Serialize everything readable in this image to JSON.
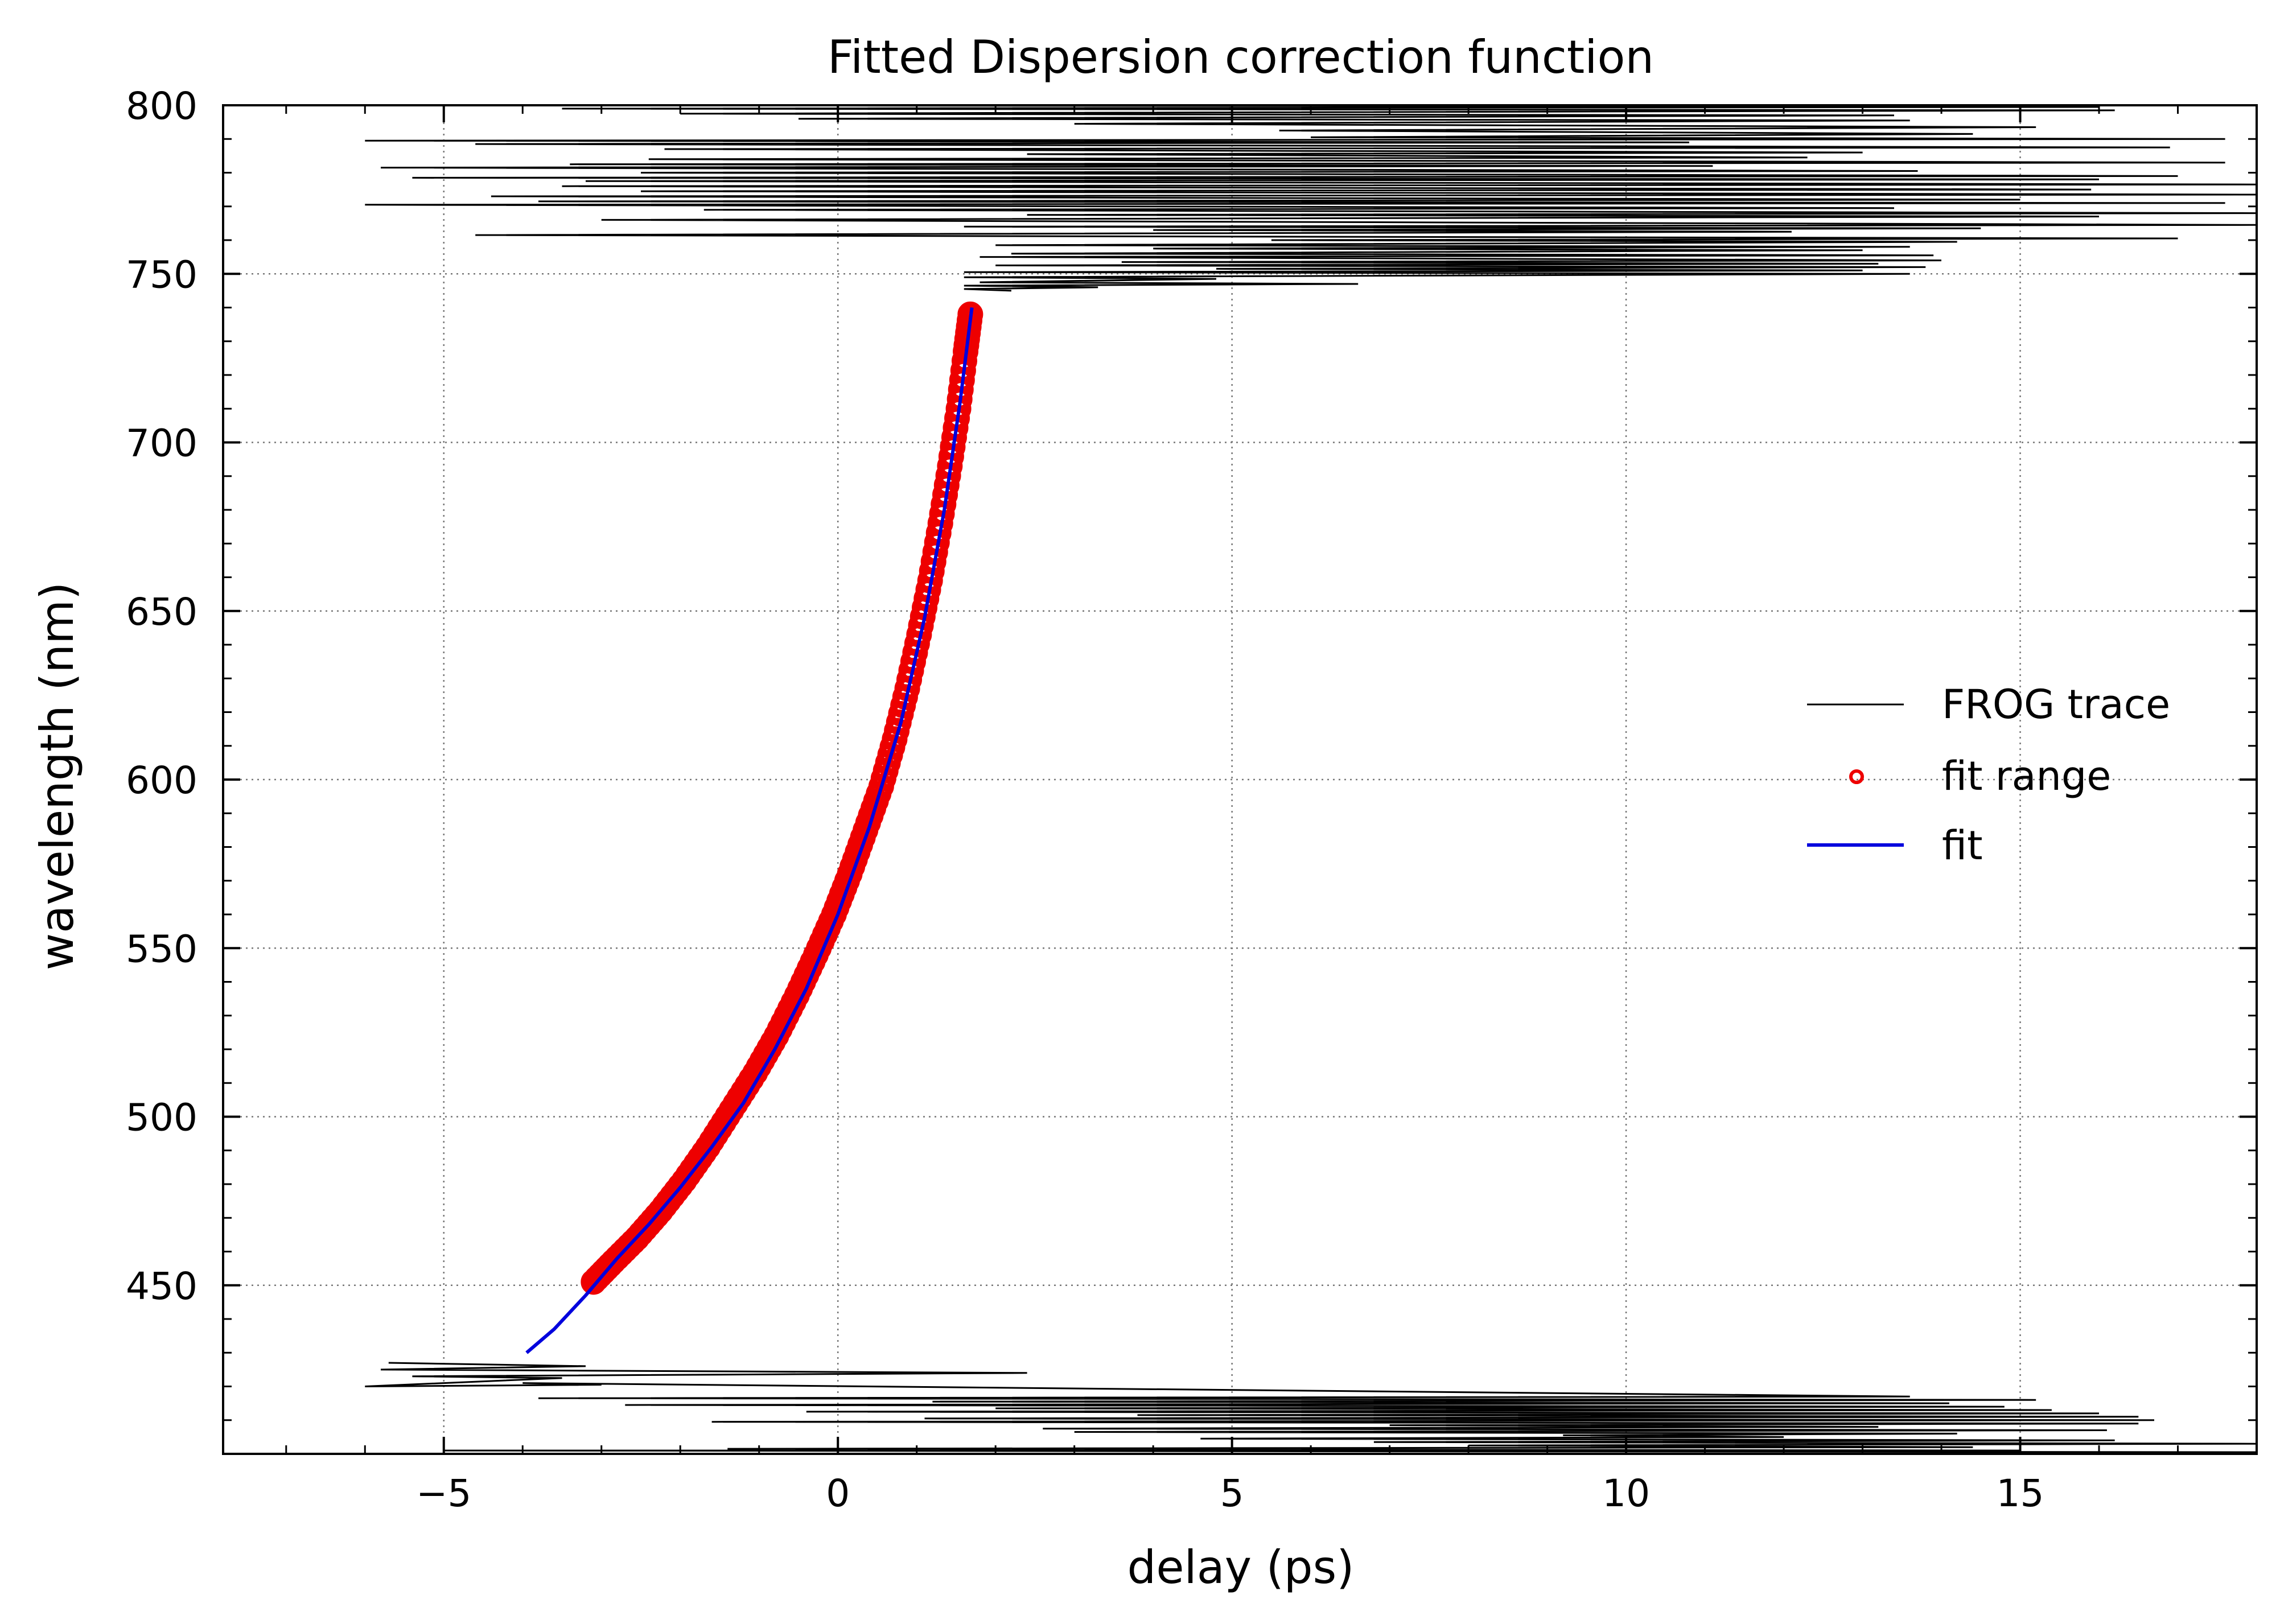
{
  "chart_data": {
    "type": "line",
    "title": "Fitted Dispersion correction function",
    "xlabel": "delay (ps)",
    "ylabel": "wavelength (nm)",
    "xlim": [
      -7.8,
      18.0
    ],
    "ylim": [
      400,
      800
    ],
    "xticks": [
      -5,
      0,
      5,
      10,
      15
    ],
    "xtick_labels": [
      "−5",
      "0",
      "5",
      "10",
      "15"
    ],
    "yticks": [
      450,
      500,
      550,
      600,
      650,
      700,
      750,
      800
    ],
    "ytick_labels": [
      "450",
      "500",
      "550",
      "600",
      "650",
      "700",
      "750",
      "800"
    ],
    "grid": true,
    "legend_position": "center-right",
    "series": [
      {
        "name": "FROG trace",
        "style": "line",
        "color": "#000000",
        "points": [
          [
            -5.7,
            427
          ],
          [
            -3.2,
            426
          ],
          [
            -5.8,
            425
          ],
          [
            2.4,
            424
          ],
          [
            -5.4,
            423
          ],
          [
            -3.5,
            422.5
          ],
          [
            -6.0,
            420
          ],
          [
            -3.0,
            420.5
          ],
          [
            -4.0,
            421
          ],
          [
            13.6,
            417
          ],
          [
            -3.8,
            416.5
          ],
          [
            15.2,
            416
          ],
          [
            1.2,
            415.5
          ],
          [
            14.1,
            415
          ],
          [
            -2.7,
            414.5
          ],
          [
            14.8,
            414
          ],
          [
            2.0,
            413.5
          ],
          [
            15.4,
            413
          ],
          [
            -0.4,
            412.5
          ],
          [
            16.0,
            412
          ],
          [
            3.8,
            411.5
          ],
          [
            16.5,
            411
          ],
          [
            1.1,
            410.5
          ],
          [
            16.7,
            410
          ],
          [
            -1.6,
            409.5
          ],
          [
            16.5,
            409
          ],
          [
            7.0,
            408.5
          ],
          [
            13.2,
            408
          ],
          [
            2.6,
            407.5
          ],
          [
            16.1,
            407
          ],
          [
            3.0,
            406.5
          ],
          [
            14.2,
            406
          ],
          [
            9.2,
            405.5
          ],
          [
            12.0,
            405
          ],
          [
            4.6,
            404.5
          ],
          [
            16.2,
            404
          ],
          [
            6.8,
            403.5
          ],
          [
            18.0,
            403
          ],
          [
            8.0,
            402.5
          ],
          [
            14.4,
            402
          ],
          [
            -1.4,
            401.5
          ],
          [
            15.0,
            401
          ],
          [
            -5.0,
            401
          ],
          [
            18.0,
            400.5
          ]
        ],
        "upper_points": [
          [
            -3.3,
            800
          ],
          [
            16.0,
            799.5
          ],
          [
            -3.5,
            799
          ],
          [
            16.2,
            798.5
          ],
          [
            -2.0,
            797.5
          ],
          [
            13.4,
            797
          ],
          [
            -0.5,
            796
          ],
          [
            13.6,
            795.5
          ],
          [
            3.0,
            794.5
          ],
          [
            15.2,
            793.5
          ],
          [
            5.6,
            792.5
          ],
          [
            14.4,
            791.5
          ],
          [
            6.0,
            790.5
          ],
          [
            17.6,
            790
          ],
          [
            -6.0,
            789.5
          ],
          [
            10.8,
            789
          ],
          [
            -4.6,
            788.5
          ],
          [
            16.9,
            787.5
          ],
          [
            -2.2,
            787
          ],
          [
            13.0,
            786
          ],
          [
            2.4,
            785.5
          ],
          [
            12.3,
            784.5
          ],
          [
            -2.4,
            784
          ],
          [
            17.6,
            783
          ],
          [
            -3.4,
            782.5
          ],
          [
            11.1,
            782
          ],
          [
            -5.8,
            781.5
          ],
          [
            13.7,
            780.5
          ],
          [
            -2.5,
            780
          ],
          [
            17.0,
            779
          ],
          [
            -5.4,
            778.5
          ],
          [
            16.0,
            778
          ],
          [
            -3.2,
            777.5
          ],
          [
            18.0,
            776.5
          ],
          [
            -3.5,
            776
          ],
          [
            15.9,
            775
          ],
          [
            -2.5,
            774.5
          ],
          [
            18.0,
            773.5
          ],
          [
            -4.4,
            773
          ],
          [
            15.0,
            772
          ],
          [
            -3.8,
            771.5
          ],
          [
            17.6,
            771
          ],
          [
            -6.0,
            770.5
          ],
          [
            13.4,
            769.5
          ],
          [
            -1.7,
            769
          ],
          [
            18.0,
            768
          ],
          [
            2.4,
            767.5
          ],
          [
            16.0,
            767
          ],
          [
            -3.0,
            766
          ],
          [
            18.0,
            764.5
          ],
          [
            1.6,
            764
          ],
          [
            14.5,
            763.5
          ],
          [
            4.0,
            763
          ],
          [
            12.1,
            762.5
          ],
          [
            -4.6,
            761.5
          ],
          [
            17.0,
            760.5
          ],
          [
            5.5,
            760
          ],
          [
            14.2,
            759.5
          ],
          [
            2.0,
            758.5
          ],
          [
            13.6,
            758
          ],
          [
            4.0,
            757.5
          ],
          [
            13.0,
            757
          ],
          [
            2.2,
            756
          ],
          [
            13.9,
            755.5
          ],
          [
            1.8,
            755
          ],
          [
            14.0,
            754
          ],
          [
            3.6,
            753.5
          ],
          [
            13.2,
            753
          ],
          [
            2.0,
            752.5
          ],
          [
            13.8,
            752
          ],
          [
            4.8,
            751.5
          ],
          [
            13.0,
            751
          ],
          [
            1.6,
            750.5
          ],
          [
            13.6,
            750
          ],
          [
            1.6,
            749
          ],
          [
            4.8,
            748.5
          ],
          [
            1.8,
            747.5
          ],
          [
            6.6,
            747
          ],
          [
            1.6,
            746.5
          ],
          [
            3.3,
            746
          ],
          [
            1.6,
            745.5
          ],
          [
            2.2,
            745
          ]
        ]
      },
      {
        "name": "fit range",
        "style": "markers",
        "color": "#ee0000",
        "points": [
          [
            -3.1,
            451
          ],
          [
            -2.85,
            457
          ],
          [
            -2.55,
            464
          ],
          [
            -2.25,
            472
          ],
          [
            -1.95,
            481
          ],
          [
            -1.65,
            491
          ],
          [
            -1.35,
            502
          ],
          [
            -1.05,
            513
          ],
          [
            -0.78,
            524
          ],
          [
            -0.52,
            536
          ],
          [
            -0.28,
            548
          ],
          [
            -0.05,
            560
          ],
          [
            0.15,
            572
          ],
          [
            0.35,
            585
          ],
          [
            0.55,
            598
          ],
          [
            0.72,
            612
          ],
          [
            0.88,
            627
          ],
          [
            1.03,
            643
          ],
          [
            1.17,
            659
          ],
          [
            1.3,
            676
          ],
          [
            1.42,
            693
          ],
          [
            1.53,
            710
          ],
          [
            1.62,
            727
          ],
          [
            1.68,
            738
          ]
        ]
      },
      {
        "name": "fit",
        "style": "line",
        "color": "#0000dd",
        "points": [
          [
            -3.95,
            430
          ],
          [
            -3.6,
            437
          ],
          [
            -3.2,
            447
          ],
          [
            -2.8,
            458
          ],
          [
            -2.4,
            468
          ],
          [
            -2.0,
            479
          ],
          [
            -1.6,
            491
          ],
          [
            -1.2,
            504
          ],
          [
            -0.8,
            520
          ],
          [
            -0.4,
            538
          ],
          [
            0.0,
            560
          ],
          [
            0.4,
            586
          ],
          [
            0.8,
            617
          ],
          [
            1.1,
            648
          ],
          [
            1.35,
            680
          ],
          [
            1.55,
            712
          ],
          [
            1.7,
            740
          ]
        ]
      }
    ]
  }
}
